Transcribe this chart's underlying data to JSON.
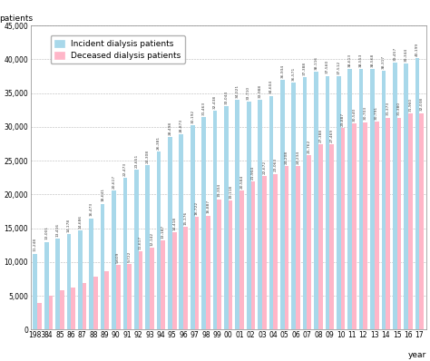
{
  "year_labels": [
    "1983",
    "84",
    "85",
    "86",
    "87",
    "88",
    "89",
    "90",
    "91",
    "92",
    "93",
    "94",
    "95",
    "96",
    "97",
    "98",
    "99",
    "00",
    "01",
    "02",
    "03",
    "04",
    "05",
    "06",
    "07",
    "08",
    "09",
    "10",
    "11",
    "12",
    "13",
    "14",
    "15",
    "16",
    "17"
  ],
  "incident": [
    11248,
    13001,
    13416,
    14178,
    14686,
    16473,
    18641,
    20617,
    22473,
    23651,
    24308,
    26381,
    28498,
    28873,
    30192,
    31463,
    32438,
    33044,
    34021,
    33710,
    33988,
    34604,
    36934,
    36571,
    37388,
    38116,
    37560,
    37512,
    38613,
    38553,
    38568,
    38317,
    39457,
    39344,
    40199
  ],
  "deceased": [
    4008,
    5080,
    5770,
    6288,
    6881,
    7869,
    8706,
    9609,
    9722,
    11617,
    12142,
    13187,
    14418,
    15176,
    16722,
    16887,
    19304,
    19118,
    20584,
    21904,
    22672,
    23063,
    24208,
    24234,
    25762,
    27388,
    27469,
    29887,
    30540,
    30703,
    30791,
    31373,
    31380,
    31960,
    32038
  ],
  "incident_color": "#a8d8ea",
  "deceased_color": "#ffb6c8",
  "bar_edge_color": "none",
  "grid_color": "#999999",
  "ylim": [
    0,
    45000
  ],
  "yticks": [
    0,
    5000,
    10000,
    15000,
    20000,
    25000,
    30000,
    35000,
    40000,
    45000
  ],
  "ytick_labels": [
    "0",
    "5,000",
    "10,000",
    "15,000",
    "20,000",
    "25,000",
    "30,000",
    "35,000",
    "40,000",
    "45,000"
  ],
  "ylabel": "patients",
  "xlabel": "year",
  "legend_incident": "Incident dialysis patients",
  "legend_deceased": "Deceased dialysis patients",
  "label_fontsize": 6.5,
  "axis_fontsize": 5.5,
  "value_fontsize": 3.2,
  "bar_width": 0.38,
  "bar_gap": 0.05
}
